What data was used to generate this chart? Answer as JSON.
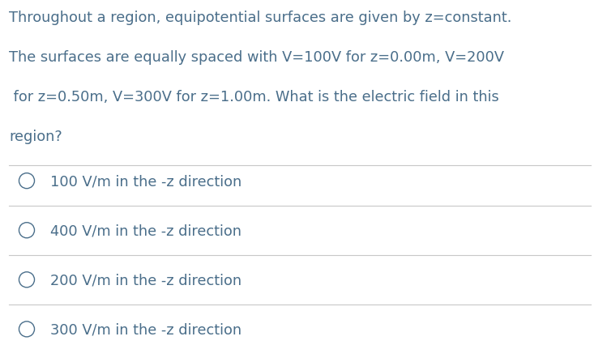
{
  "background_color": "#ffffff",
  "text_color": "#4a6e8a",
  "separator_color": "#c8c8c8",
  "question_lines": [
    "Throughout a region, equipotential surfaces are given by z=constant.",
    "The surfaces are equally spaced with V=100V for z=0.00m, V=200V",
    " for z=0.50m, V=300V for z=1.00m. What is the electric field in this",
    "region?"
  ],
  "options": [
    "100 V/m in the -z direction",
    "400 V/m in the -z direction",
    "200 V/m in the -z direction",
    "300 V/m in the -z direction"
  ],
  "question_fontsize": 12.8,
  "option_fontsize": 12.8,
  "fig_width": 7.33,
  "fig_height": 4.27,
  "dpi": 100
}
